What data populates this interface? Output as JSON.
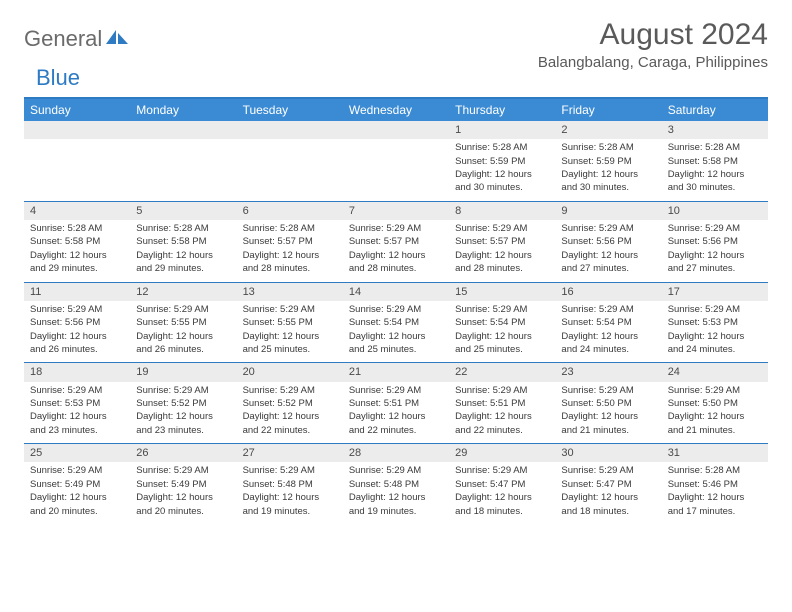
{
  "logo": {
    "part1": "General",
    "part2": "Blue"
  },
  "title": "August 2024",
  "location": "Balangbalang, Caraga, Philippines",
  "colors": {
    "header_bg": "#3b8bd4",
    "accent": "#2e7bc4",
    "daynum_bg": "#ececec",
    "text": "#3a3a3a",
    "title_text": "#5a5a5a"
  },
  "weekdays": [
    "Sunday",
    "Monday",
    "Tuesday",
    "Wednesday",
    "Thursday",
    "Friday",
    "Saturday"
  ],
  "weeks": [
    {
      "nums": [
        "",
        "",
        "",
        "",
        "1",
        "2",
        "3"
      ],
      "cells": [
        null,
        null,
        null,
        null,
        {
          "sunrise": "Sunrise: 5:28 AM",
          "sunset": "Sunset: 5:59 PM",
          "day1": "Daylight: 12 hours",
          "day2": "and 30 minutes."
        },
        {
          "sunrise": "Sunrise: 5:28 AM",
          "sunset": "Sunset: 5:59 PM",
          "day1": "Daylight: 12 hours",
          "day2": "and 30 minutes."
        },
        {
          "sunrise": "Sunrise: 5:28 AM",
          "sunset": "Sunset: 5:58 PM",
          "day1": "Daylight: 12 hours",
          "day2": "and 30 minutes."
        }
      ]
    },
    {
      "nums": [
        "4",
        "5",
        "6",
        "7",
        "8",
        "9",
        "10"
      ],
      "cells": [
        {
          "sunrise": "Sunrise: 5:28 AM",
          "sunset": "Sunset: 5:58 PM",
          "day1": "Daylight: 12 hours",
          "day2": "and 29 minutes."
        },
        {
          "sunrise": "Sunrise: 5:28 AM",
          "sunset": "Sunset: 5:58 PM",
          "day1": "Daylight: 12 hours",
          "day2": "and 29 minutes."
        },
        {
          "sunrise": "Sunrise: 5:28 AM",
          "sunset": "Sunset: 5:57 PM",
          "day1": "Daylight: 12 hours",
          "day2": "and 28 minutes."
        },
        {
          "sunrise": "Sunrise: 5:29 AM",
          "sunset": "Sunset: 5:57 PM",
          "day1": "Daylight: 12 hours",
          "day2": "and 28 minutes."
        },
        {
          "sunrise": "Sunrise: 5:29 AM",
          "sunset": "Sunset: 5:57 PM",
          "day1": "Daylight: 12 hours",
          "day2": "and 28 minutes."
        },
        {
          "sunrise": "Sunrise: 5:29 AM",
          "sunset": "Sunset: 5:56 PM",
          "day1": "Daylight: 12 hours",
          "day2": "and 27 minutes."
        },
        {
          "sunrise": "Sunrise: 5:29 AM",
          "sunset": "Sunset: 5:56 PM",
          "day1": "Daylight: 12 hours",
          "day2": "and 27 minutes."
        }
      ]
    },
    {
      "nums": [
        "11",
        "12",
        "13",
        "14",
        "15",
        "16",
        "17"
      ],
      "cells": [
        {
          "sunrise": "Sunrise: 5:29 AM",
          "sunset": "Sunset: 5:56 PM",
          "day1": "Daylight: 12 hours",
          "day2": "and 26 minutes."
        },
        {
          "sunrise": "Sunrise: 5:29 AM",
          "sunset": "Sunset: 5:55 PM",
          "day1": "Daylight: 12 hours",
          "day2": "and 26 minutes."
        },
        {
          "sunrise": "Sunrise: 5:29 AM",
          "sunset": "Sunset: 5:55 PM",
          "day1": "Daylight: 12 hours",
          "day2": "and 25 minutes."
        },
        {
          "sunrise": "Sunrise: 5:29 AM",
          "sunset": "Sunset: 5:54 PM",
          "day1": "Daylight: 12 hours",
          "day2": "and 25 minutes."
        },
        {
          "sunrise": "Sunrise: 5:29 AM",
          "sunset": "Sunset: 5:54 PM",
          "day1": "Daylight: 12 hours",
          "day2": "and 25 minutes."
        },
        {
          "sunrise": "Sunrise: 5:29 AM",
          "sunset": "Sunset: 5:54 PM",
          "day1": "Daylight: 12 hours",
          "day2": "and 24 minutes."
        },
        {
          "sunrise": "Sunrise: 5:29 AM",
          "sunset": "Sunset: 5:53 PM",
          "day1": "Daylight: 12 hours",
          "day2": "and 24 minutes."
        }
      ]
    },
    {
      "nums": [
        "18",
        "19",
        "20",
        "21",
        "22",
        "23",
        "24"
      ],
      "cells": [
        {
          "sunrise": "Sunrise: 5:29 AM",
          "sunset": "Sunset: 5:53 PM",
          "day1": "Daylight: 12 hours",
          "day2": "and 23 minutes."
        },
        {
          "sunrise": "Sunrise: 5:29 AM",
          "sunset": "Sunset: 5:52 PM",
          "day1": "Daylight: 12 hours",
          "day2": "and 23 minutes."
        },
        {
          "sunrise": "Sunrise: 5:29 AM",
          "sunset": "Sunset: 5:52 PM",
          "day1": "Daylight: 12 hours",
          "day2": "and 22 minutes."
        },
        {
          "sunrise": "Sunrise: 5:29 AM",
          "sunset": "Sunset: 5:51 PM",
          "day1": "Daylight: 12 hours",
          "day2": "and 22 minutes."
        },
        {
          "sunrise": "Sunrise: 5:29 AM",
          "sunset": "Sunset: 5:51 PM",
          "day1": "Daylight: 12 hours",
          "day2": "and 22 minutes."
        },
        {
          "sunrise": "Sunrise: 5:29 AM",
          "sunset": "Sunset: 5:50 PM",
          "day1": "Daylight: 12 hours",
          "day2": "and 21 minutes."
        },
        {
          "sunrise": "Sunrise: 5:29 AM",
          "sunset": "Sunset: 5:50 PM",
          "day1": "Daylight: 12 hours",
          "day2": "and 21 minutes."
        }
      ]
    },
    {
      "nums": [
        "25",
        "26",
        "27",
        "28",
        "29",
        "30",
        "31"
      ],
      "cells": [
        {
          "sunrise": "Sunrise: 5:29 AM",
          "sunset": "Sunset: 5:49 PM",
          "day1": "Daylight: 12 hours",
          "day2": "and 20 minutes."
        },
        {
          "sunrise": "Sunrise: 5:29 AM",
          "sunset": "Sunset: 5:49 PM",
          "day1": "Daylight: 12 hours",
          "day2": "and 20 minutes."
        },
        {
          "sunrise": "Sunrise: 5:29 AM",
          "sunset": "Sunset: 5:48 PM",
          "day1": "Daylight: 12 hours",
          "day2": "and 19 minutes."
        },
        {
          "sunrise": "Sunrise: 5:29 AM",
          "sunset": "Sunset: 5:48 PM",
          "day1": "Daylight: 12 hours",
          "day2": "and 19 minutes."
        },
        {
          "sunrise": "Sunrise: 5:29 AM",
          "sunset": "Sunset: 5:47 PM",
          "day1": "Daylight: 12 hours",
          "day2": "and 18 minutes."
        },
        {
          "sunrise": "Sunrise: 5:29 AM",
          "sunset": "Sunset: 5:47 PM",
          "day1": "Daylight: 12 hours",
          "day2": "and 18 minutes."
        },
        {
          "sunrise": "Sunrise: 5:28 AM",
          "sunset": "Sunset: 5:46 PM",
          "day1": "Daylight: 12 hours",
          "day2": "and 17 minutes."
        }
      ]
    }
  ]
}
